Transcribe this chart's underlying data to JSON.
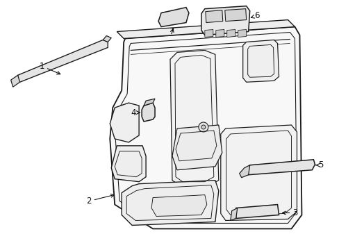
{
  "bg_color": "#ffffff",
  "fig_width": 4.89,
  "fig_height": 3.6,
  "dpi": 100,
  "lc": "#1a1a1a",
  "lw": 1.1,
  "fc_panel": "#f8f8f8",
  "fc_inner": "#f0f0f0",
  "fc_part": "#e8e8e8",
  "label_fs": 8.5,
  "label_color": "#111111"
}
